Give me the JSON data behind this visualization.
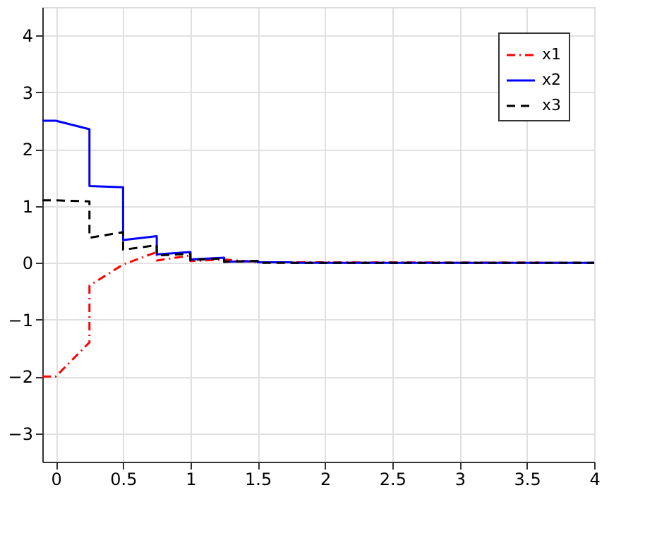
{
  "chart_data": {
    "type": "line",
    "xlim": [
      -0.1,
      4
    ],
    "ylim": [
      -3.5,
      4.5
    ],
    "xticks": [
      0,
      0.5,
      1,
      1.5,
      2,
      2.5,
      3,
      3.5,
      4
    ],
    "yticks": [
      -3,
      -2,
      -1,
      0,
      1,
      2,
      3,
      4
    ],
    "grid": true,
    "legend": "top right",
    "series": [
      {
        "name": "x1",
        "color": "#ff0000",
        "line_style": "dashdot",
        "x": [
          -0.1,
          0,
          0.25,
          0.25,
          0.5,
          0.75,
          0.75,
          1,
          1,
          1.25,
          1.5,
          4
        ],
        "values": [
          -2,
          -2,
          -1.4,
          -0.4,
          -0.03,
          0.19,
          0.04,
          0.13,
          0.03,
          0.06,
          0.01,
          0
        ]
      },
      {
        "name": "x2",
        "color": "#0000ff",
        "line_style": "solid",
        "x": [
          -0.1,
          0,
          0.25,
          0.25,
          0.5,
          0.5,
          0.75,
          0.75,
          1,
          1,
          1.25,
          1.25,
          1.5,
          1.5,
          1.75,
          1.75,
          4
        ],
        "values": [
          2.5,
          2.5,
          2.35,
          1.35,
          1.33,
          0.4,
          0.47,
          0.15,
          0.19,
          0.06,
          0.09,
          0.02,
          0.03,
          0.01,
          0.01,
          0,
          0
        ]
      },
      {
        "name": "x3",
        "color": "#000000",
        "line_style": "dashed",
        "x": [
          -0.1,
          0,
          0.25,
          0.25,
          0.5,
          0.5,
          0.75,
          0.75,
          1,
          1,
          1.25,
          1.25,
          1.5,
          1.5,
          4
        ],
        "values": [
          1.1,
          1.1,
          1.08,
          0.44,
          0.54,
          0.23,
          0.31,
          0.13,
          0.16,
          0.05,
          0.08,
          0.02,
          0.03,
          0,
          0
        ]
      }
    ]
  }
}
